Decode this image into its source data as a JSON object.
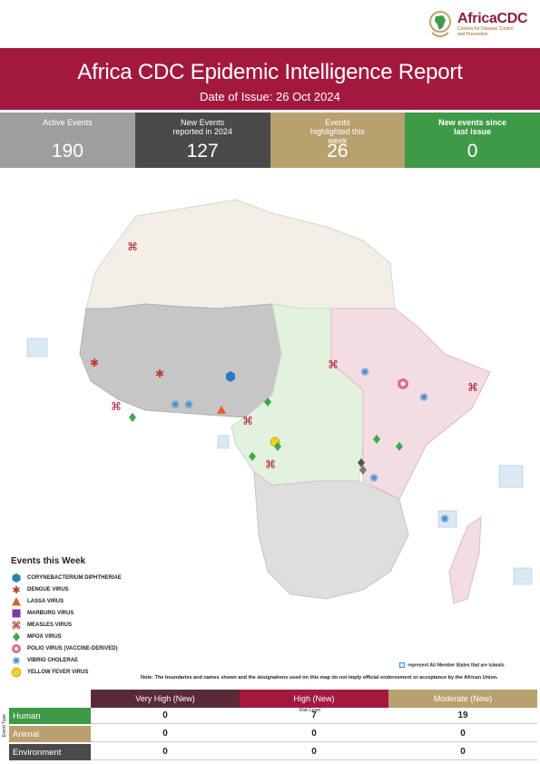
{
  "logo": {
    "brand": "AfricaCDC",
    "tagline": "Centres for Disease Control and Prevention"
  },
  "header": {
    "title": "Africa CDC Epidemic Intelligence Report",
    "date": "Date of Issue: 26 Oct 2024"
  },
  "stats": [
    {
      "label": "Active Events",
      "value": "190",
      "color": "#9e9e9e"
    },
    {
      "label": "New Events reported in 2024",
      "value": "127",
      "color": "#4a4a4a"
    },
    {
      "label": "Events highlighted this week",
      "value": "26",
      "color": "#b9a16f"
    },
    {
      "label": "New events since last issue",
      "value": "0",
      "color": "#3e9a47"
    }
  ],
  "legend": {
    "title": "Events this Week",
    "items": [
      {
        "label": "CORYNEBACTERIUM DIPHTHERIAE",
        "icon": "hexagon-icon",
        "color": "#2b7bbf"
      },
      {
        "label": "DENGUE VIRUS",
        "icon": "mosquito-icon",
        "color": "#c0392b"
      },
      {
        "label": "LASSA VIRUS",
        "icon": "triangle-icon",
        "color": "#e0612a"
      },
      {
        "label": "MARBURG VIRUS",
        "icon": "square-icon",
        "color": "#7a3aa0"
      },
      {
        "label": "MEASLES VIRUS",
        "icon": "measles-icon",
        "color": "#b3142e"
      },
      {
        "label": "MPOX VIRUS",
        "icon": "diamond-icon",
        "color": "#3daa4a"
      },
      {
        "label": "POLIO VIRUS (VACCINE-DERIVED)",
        "icon": "polio-icon",
        "color": "#e46a8a"
      },
      {
        "label": "VIBRIO CHOLERAE",
        "icon": "vibrio-icon",
        "color": "#4a90d0"
      },
      {
        "label": "YELLOW FEVER VIRUS",
        "icon": "circle-icon",
        "color": "#f2d21b"
      }
    ]
  },
  "map_notes": {
    "islands": "represent AU Member States that are islands",
    "disclaimer": "Note: The boundaries and names shown and the designations used on this map do not imply official endorsement or acceptance by the African Union."
  },
  "risk_table": {
    "risk_level_label": "Risk Level",
    "event_type_label": "Event Type",
    "columns": [
      {
        "label": "Very High (New)",
        "color": "#5a2a36"
      },
      {
        "label": "High (New)",
        "color": "#a3193e"
      },
      {
        "label": "Moderate (New)",
        "color": "#b9a16f"
      }
    ],
    "rows": [
      {
        "label": "Human",
        "color": "#3e9a47",
        "values": [
          "0",
          "7",
          "19"
        ]
      },
      {
        "label": "Animal",
        "color": "#b9a16f",
        "values": [
          "0",
          "0",
          "0"
        ]
      },
      {
        "label": "Environment",
        "color": "#4a4a4a",
        "values": [
          "0",
          "0",
          "0"
        ]
      }
    ]
  }
}
